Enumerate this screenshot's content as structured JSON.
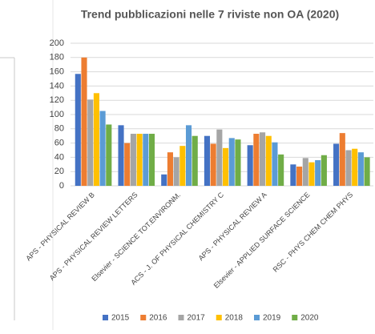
{
  "chart_data": {
    "type": "bar",
    "title": "Trend pubblicazioni nelle 7 riviste non OA (2020)",
    "categories": [
      "APS - PHYSICAL REVIEW B",
      "APS - PHYSICAL REVIEW LETTERS",
      "Elsevier - SCIENCE TOT.ENVIRONM.",
      "ACS - J. OF PHYSICAL CHEMISTRY C",
      "APS - PHYSICAL REVIEW A",
      "Elsevier - APPLIED SURFACE SCIENCE",
      "RSC - PHYS CHEM CHEM PHYS"
    ],
    "series": [
      {
        "name": "2015",
        "color": "#4472c4",
        "values": [
          157,
          85,
          16,
          70,
          57,
          30,
          59
        ]
      },
      {
        "name": "2016",
        "color": "#ed7d31",
        "values": [
          180,
          60,
          47,
          59,
          73,
          27,
          74
        ]
      },
      {
        "name": "2017",
        "color": "#a5a5a5",
        "values": [
          121,
          73,
          40,
          79,
          75,
          39,
          50
        ]
      },
      {
        "name": "2018",
        "color": "#ffc000",
        "values": [
          130,
          73,
          56,
          53,
          70,
          33,
          52
        ]
      },
      {
        "name": "2019",
        "color": "#5b9bd5",
        "values": [
          105,
          73,
          85,
          67,
          61,
          36,
          47
        ]
      },
      {
        "name": "2020",
        "color": "#70ad47",
        "values": [
          86,
          73,
          70,
          65,
          44,
          43,
          40
        ]
      }
    ],
    "ylim": [
      0,
      200
    ],
    "yticks": [
      0,
      20,
      40,
      60,
      80,
      100,
      120,
      140,
      160,
      180,
      200
    ],
    "grid": true,
    "legend": "bottom"
  }
}
